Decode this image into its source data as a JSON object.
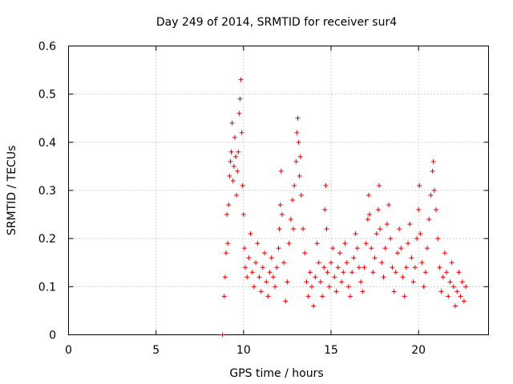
{
  "chart_data": {
    "type": "scatter",
    "title": "Day 249 of 2014, SRMTID for receiver sur4",
    "xlabel": "GPS time / hours",
    "ylabel": "SRMTID / TECUs",
    "xlim": [
      0,
      24
    ],
    "ylim": [
      0,
      0.6
    ],
    "x_ticks": [
      "0",
      "5",
      "10",
      "15",
      "20"
    ],
    "y_ticks": [
      "0",
      "0.1",
      "0.2",
      "0.3",
      "0.4",
      "0.5",
      "0.6"
    ],
    "grid": true,
    "marker": "+",
    "color": "#e00000",
    "series": [
      {
        "name": "SRMTID",
        "points": [
          [
            8.8,
            0.0
          ],
          [
            8.9,
            0.08
          ],
          [
            8.95,
            0.12
          ],
          [
            9.0,
            0.17
          ],
          [
            9.05,
            0.25
          ],
          [
            9.1,
            0.19
          ],
          [
            9.15,
            0.27
          ],
          [
            9.2,
            0.33
          ],
          [
            9.25,
            0.36
          ],
          [
            9.3,
            0.38
          ],
          [
            9.35,
            0.44
          ],
          [
            9.4,
            0.32
          ],
          [
            9.45,
            0.35
          ],
          [
            9.5,
            0.41
          ],
          [
            9.55,
            0.37
          ],
          [
            9.6,
            0.29
          ],
          [
            9.65,
            0.34
          ],
          [
            9.7,
            0.38
          ],
          [
            9.75,
            0.46
          ],
          [
            9.8,
            0.49
          ],
          [
            9.85,
            0.53
          ],
          [
            9.9,
            0.42
          ],
          [
            9.95,
            0.31
          ],
          [
            10.0,
            0.25
          ],
          [
            10.05,
            0.18
          ],
          [
            10.1,
            0.14
          ],
          [
            10.2,
            0.12
          ],
          [
            10.3,
            0.16
          ],
          [
            10.4,
            0.21
          ],
          [
            10.5,
            0.13
          ],
          [
            10.6,
            0.1
          ],
          [
            10.7,
            0.15
          ],
          [
            10.8,
            0.19
          ],
          [
            10.9,
            0.12
          ],
          [
            11.0,
            0.09
          ],
          [
            11.1,
            0.14
          ],
          [
            11.2,
            0.17
          ],
          [
            11.3,
            0.11
          ],
          [
            11.4,
            0.08
          ],
          [
            11.5,
            0.13
          ],
          [
            11.6,
            0.16
          ],
          [
            11.7,
            0.12
          ],
          [
            11.8,
            0.1
          ],
          [
            11.9,
            0.14
          ],
          [
            12.0,
            0.18
          ],
          [
            12.05,
            0.22
          ],
          [
            12.1,
            0.27
          ],
          [
            12.15,
            0.34
          ],
          [
            12.2,
            0.25
          ],
          [
            12.3,
            0.15
          ],
          [
            12.4,
            0.07
          ],
          [
            12.5,
            0.11
          ],
          [
            12.6,
            0.19
          ],
          [
            12.7,
            0.24
          ],
          [
            12.8,
            0.28
          ],
          [
            12.85,
            0.22
          ],
          [
            12.9,
            0.31
          ],
          [
            13.0,
            0.36
          ],
          [
            13.05,
            0.42
          ],
          [
            13.1,
            0.45
          ],
          [
            13.15,
            0.4
          ],
          [
            13.2,
            0.33
          ],
          [
            13.25,
            0.37
          ],
          [
            13.3,
            0.29
          ],
          [
            13.4,
            0.22
          ],
          [
            13.5,
            0.17
          ],
          [
            13.6,
            0.11
          ],
          [
            13.7,
            0.08
          ],
          [
            13.8,
            0.13
          ],
          [
            13.9,
            0.1
          ],
          [
            14.0,
            0.06
          ],
          [
            14.1,
            0.12
          ],
          [
            14.2,
            0.19
          ],
          [
            14.3,
            0.15
          ],
          [
            14.4,
            0.11
          ],
          [
            14.5,
            0.08
          ],
          [
            14.6,
            0.14
          ],
          [
            14.65,
            0.26
          ],
          [
            14.7,
            0.31
          ],
          [
            14.75,
            0.22
          ],
          [
            14.8,
            0.13
          ],
          [
            14.9,
            0.1
          ],
          [
            15.0,
            0.15
          ],
          [
            15.1,
            0.18
          ],
          [
            15.2,
            0.12
          ],
          [
            15.3,
            0.09
          ],
          [
            15.4,
            0.14
          ],
          [
            15.5,
            0.17
          ],
          [
            15.6,
            0.11
          ],
          [
            15.7,
            0.13
          ],
          [
            15.8,
            0.19
          ],
          [
            15.9,
            0.15
          ],
          [
            16.0,
            0.1
          ],
          [
            16.1,
            0.08
          ],
          [
            16.2,
            0.13
          ],
          [
            16.3,
            0.16
          ],
          [
            16.4,
            0.21
          ],
          [
            16.5,
            0.18
          ],
          [
            16.6,
            0.14
          ],
          [
            16.7,
            0.11
          ],
          [
            16.8,
            0.09
          ],
          [
            16.9,
            0.14
          ],
          [
            17.0,
            0.19
          ],
          [
            17.1,
            0.24
          ],
          [
            17.15,
            0.29
          ],
          [
            17.2,
            0.25
          ],
          [
            17.3,
            0.18
          ],
          [
            17.4,
            0.13
          ],
          [
            17.5,
            0.16
          ],
          [
            17.6,
            0.21
          ],
          [
            17.7,
            0.26
          ],
          [
            17.75,
            0.31
          ],
          [
            17.8,
            0.22
          ],
          [
            17.9,
            0.15
          ],
          [
            18.0,
            0.12
          ],
          [
            18.1,
            0.18
          ],
          [
            18.2,
            0.23
          ],
          [
            18.3,
            0.27
          ],
          [
            18.4,
            0.2
          ],
          [
            18.5,
            0.14
          ],
          [
            18.6,
            0.09
          ],
          [
            18.7,
            0.13
          ],
          [
            18.8,
            0.17
          ],
          [
            18.9,
            0.22
          ],
          [
            19.0,
            0.18
          ],
          [
            19.1,
            0.12
          ],
          [
            19.2,
            0.08
          ],
          [
            19.3,
            0.14
          ],
          [
            19.4,
            0.19
          ],
          [
            19.5,
            0.23
          ],
          [
            19.6,
            0.16
          ],
          [
            19.7,
            0.11
          ],
          [
            19.8,
            0.14
          ],
          [
            19.9,
            0.2
          ],
          [
            20.0,
            0.26
          ],
          [
            20.05,
            0.31
          ],
          [
            20.1,
            0.21
          ],
          [
            20.2,
            0.15
          ],
          [
            20.3,
            0.1
          ],
          [
            20.4,
            0.13
          ],
          [
            20.5,
            0.18
          ],
          [
            20.6,
            0.24
          ],
          [
            20.7,
            0.29
          ],
          [
            20.8,
            0.34
          ],
          [
            20.85,
            0.36
          ],
          [
            20.9,
            0.3
          ],
          [
            21.0,
            0.26
          ],
          [
            21.1,
            0.2
          ],
          [
            21.2,
            0.14
          ],
          [
            21.3,
            0.09
          ],
          [
            21.4,
            0.12
          ],
          [
            21.5,
            0.17
          ],
          [
            21.6,
            0.13
          ],
          [
            21.7,
            0.08
          ],
          [
            21.8,
            0.11
          ],
          [
            21.9,
            0.15
          ],
          [
            22.0,
            0.1
          ],
          [
            22.1,
            0.06
          ],
          [
            22.2,
            0.09
          ],
          [
            22.3,
            0.13
          ],
          [
            22.4,
            0.08
          ],
          [
            22.5,
            0.11
          ],
          [
            22.6,
            0.07
          ],
          [
            22.7,
            0.1
          ]
        ]
      }
    ]
  }
}
